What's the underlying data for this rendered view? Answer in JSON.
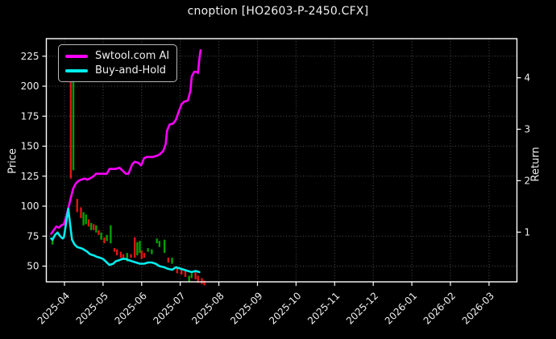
{
  "chart_data": {
    "type": "line+candlestick",
    "title": "cnoption [HO2603-P-2450.CFX]",
    "xlabel": "",
    "ylabel_left": "Price",
    "ylabel_right": "Return",
    "x_tick_labels": [
      "2025-04",
      "2025-05",
      "2025-06",
      "2025-07",
      "2025-08",
      "2025-09",
      "2025-10",
      "2025-11",
      "2025-12",
      "2026-01",
      "2026-02",
      "2026-03"
    ],
    "price_ticks": [
      50,
      75,
      100,
      125,
      150,
      175,
      200,
      225
    ],
    "return_ticks": [
      1,
      2,
      3,
      4
    ],
    "price_axis_range": [
      37,
      240
    ],
    "return_axis_range": [
      0,
      4.73
    ],
    "grid": true,
    "legend_position": "upper-left",
    "series": [
      {
        "name": "Swtool.com AI",
        "axis": "price",
        "points": [
          [
            "2025-03-21",
            77
          ],
          [
            "2025-03-23",
            80
          ],
          [
            "2025-03-25",
            83
          ],
          [
            "2025-03-27",
            82
          ],
          [
            "2025-03-29",
            84
          ],
          [
            "2025-03-31",
            85
          ],
          [
            "2025-04-02",
            90
          ],
          [
            "2025-04-04",
            98
          ],
          [
            "2025-04-06",
            107
          ],
          [
            "2025-04-08",
            115
          ],
          [
            "2025-04-10",
            119
          ],
          [
            "2025-04-12",
            121
          ],
          [
            "2025-04-14",
            122
          ],
          [
            "2025-04-17",
            123
          ],
          [
            "2025-04-19",
            122
          ],
          [
            "2025-04-21",
            123
          ],
          [
            "2025-04-24",
            125
          ],
          [
            "2025-04-26",
            127
          ],
          [
            "2025-04-29",
            127
          ],
          [
            "2025-05-01",
            127
          ],
          [
            "2025-05-04",
            127
          ],
          [
            "2025-05-06",
            131
          ],
          [
            "2025-05-09",
            131
          ],
          [
            "2025-05-11",
            131
          ],
          [
            "2025-05-14",
            132
          ],
          [
            "2025-05-16",
            130
          ],
          [
            "2025-05-19",
            127
          ],
          [
            "2025-05-21",
            127
          ],
          [
            "2025-05-24",
            135
          ],
          [
            "2025-05-26",
            137
          ],
          [
            "2025-05-29",
            136
          ],
          [
            "2025-05-31",
            134
          ],
          [
            "2025-06-03",
            140
          ],
          [
            "2025-06-05",
            141
          ],
          [
            "2025-06-08",
            141
          ],
          [
            "2025-06-10",
            141
          ],
          [
            "2025-06-13",
            142
          ],
          [
            "2025-06-15",
            143
          ],
          [
            "2025-06-18",
            146
          ],
          [
            "2025-06-20",
            152
          ],
          [
            "2025-06-21",
            163
          ],
          [
            "2025-06-23",
            168
          ],
          [
            "2025-06-26",
            169
          ],
          [
            "2025-06-28",
            172
          ],
          [
            "2025-06-30",
            178
          ],
          [
            "2025-07-02",
            185
          ],
          [
            "2025-07-04",
            187
          ],
          [
            "2025-07-07",
            188
          ],
          [
            "2025-07-09",
            196
          ],
          [
            "2025-07-10",
            208
          ],
          [
            "2025-07-12",
            212
          ],
          [
            "2025-07-14",
            212
          ],
          [
            "2025-07-15",
            211
          ],
          [
            "2025-07-16",
            222
          ],
          [
            "2025-07-17",
            230
          ]
        ]
      },
      {
        "name": "Buy-and-Hold",
        "axis": "price",
        "points": [
          [
            "2025-03-21",
            73
          ],
          [
            "2025-03-22",
            72
          ],
          [
            "2025-03-24",
            76
          ],
          [
            "2025-03-26",
            78
          ],
          [
            "2025-03-28",
            75
          ],
          [
            "2025-03-30",
            73
          ],
          [
            "2025-03-31",
            74
          ],
          [
            "2025-04-02",
            84
          ],
          [
            "2025-04-04",
            98
          ],
          [
            "2025-04-06",
            80
          ],
          [
            "2025-04-07",
            72
          ],
          [
            "2025-04-09",
            68
          ],
          [
            "2025-04-11",
            66
          ],
          [
            "2025-04-14",
            65
          ],
          [
            "2025-04-16",
            64
          ],
          [
            "2025-04-19",
            62
          ],
          [
            "2025-04-21",
            60
          ],
          [
            "2025-04-24",
            59
          ],
          [
            "2025-04-26",
            58
          ],
          [
            "2025-04-29",
            57
          ],
          [
            "2025-05-01",
            56
          ],
          [
            "2025-05-04",
            53
          ],
          [
            "2025-05-06",
            51
          ],
          [
            "2025-05-09",
            52
          ],
          [
            "2025-05-11",
            54
          ],
          [
            "2025-05-14",
            55
          ],
          [
            "2025-05-16",
            56
          ],
          [
            "2025-05-19",
            56
          ],
          [
            "2025-05-21",
            55
          ],
          [
            "2025-05-24",
            54
          ],
          [
            "2025-05-27",
            53
          ],
          [
            "2025-05-30",
            52
          ],
          [
            "2025-06-03",
            52
          ],
          [
            "2025-06-06",
            53
          ],
          [
            "2025-06-09",
            53
          ],
          [
            "2025-06-12",
            52
          ],
          [
            "2025-06-15",
            50
          ],
          [
            "2025-06-19",
            49
          ],
          [
            "2025-06-21",
            48
          ],
          [
            "2025-06-25",
            47
          ],
          [
            "2025-06-28",
            49
          ],
          [
            "2025-07-01",
            48
          ],
          [
            "2025-07-04",
            47
          ],
          [
            "2025-07-07",
            46
          ],
          [
            "2025-07-10",
            45
          ],
          [
            "2025-07-13",
            46
          ],
          [
            "2025-07-16",
            45
          ]
        ]
      }
    ],
    "candle_columns": [
      "date",
      "high",
      "low",
      "direction"
    ],
    "candles": [
      [
        "2025-03-22",
        73,
        68,
        "up"
      ],
      [
        "2025-04-06",
        206,
        123,
        "down"
      ],
      [
        "2025-04-08",
        204,
        130,
        "up"
      ],
      [
        "2025-04-11",
        106,
        95,
        "down"
      ],
      [
        "2025-04-14",
        99,
        90,
        "down"
      ],
      [
        "2025-04-16",
        95,
        84,
        "up"
      ],
      [
        "2025-04-18",
        93,
        85,
        "up"
      ],
      [
        "2025-04-20",
        89,
        83,
        "down"
      ],
      [
        "2025-04-22",
        86,
        80,
        "up"
      ],
      [
        "2025-04-24",
        85,
        80,
        "down"
      ],
      [
        "2025-04-26",
        84,
        78,
        "up"
      ],
      [
        "2025-04-28",
        80,
        76,
        "down"
      ],
      [
        "2025-04-30",
        78,
        72,
        "up"
      ],
      [
        "2025-05-02",
        74,
        69,
        "down"
      ],
      [
        "2025-05-04",
        76,
        71,
        "up"
      ],
      [
        "2025-05-07",
        84,
        69,
        "up"
      ],
      [
        "2025-05-10",
        65,
        62,
        "down"
      ],
      [
        "2025-05-12",
        64,
        59,
        "down"
      ],
      [
        "2025-05-15",
        62,
        57,
        "down"
      ],
      [
        "2025-05-17",
        60,
        56,
        "down"
      ],
      [
        "2025-05-20",
        61,
        54,
        "up"
      ],
      [
        "2025-05-23",
        60,
        57,
        "down"
      ],
      [
        "2025-05-26",
        74,
        57,
        "down"
      ],
      [
        "2025-05-28",
        70,
        59,
        "up"
      ],
      [
        "2025-05-30",
        71,
        61,
        "up"
      ],
      [
        "2025-06-01",
        63,
        56,
        "down"
      ],
      [
        "2025-06-03",
        61,
        57,
        "down"
      ],
      [
        "2025-06-06",
        65,
        62,
        "up"
      ],
      [
        "2025-06-09",
        64,
        60,
        "up"
      ],
      [
        "2025-06-13",
        73,
        69,
        "up"
      ],
      [
        "2025-06-15",
        71,
        66,
        "up"
      ],
      [
        "2025-06-19",
        72,
        61,
        "up"
      ],
      [
        "2025-06-22",
        57,
        53,
        "down"
      ],
      [
        "2025-06-25",
        57,
        52,
        "up"
      ],
      [
        "2025-06-29",
        49,
        44,
        "down"
      ],
      [
        "2025-07-02",
        47,
        43,
        "down"
      ],
      [
        "2025-07-05",
        46,
        41,
        "down"
      ],
      [
        "2025-07-08",
        42,
        37,
        "up"
      ],
      [
        "2025-07-10",
        44,
        40,
        "up"
      ],
      [
        "2025-07-13",
        45,
        39,
        "down"
      ],
      [
        "2025-07-15",
        42,
        36,
        "down"
      ],
      [
        "2025-07-18",
        40,
        35,
        "down"
      ],
      [
        "2025-07-20",
        38,
        34,
        "down"
      ]
    ]
  },
  "legend": {
    "items": [
      {
        "label": "Swtool.com AI",
        "color": "#ff00ff"
      },
      {
        "label": "Buy-and-Hold",
        "color": "#00eded"
      }
    ]
  },
  "colors": {
    "background": "#000000",
    "text": "#efefef",
    "axis": "#ffffff",
    "grid": "#4d4d4d",
    "ai_line": "#ff00ff",
    "hold_line": "#00eded",
    "candle_up": "#00a000",
    "candle_down": "#e01515",
    "legend_border": "#b9b9b9"
  }
}
